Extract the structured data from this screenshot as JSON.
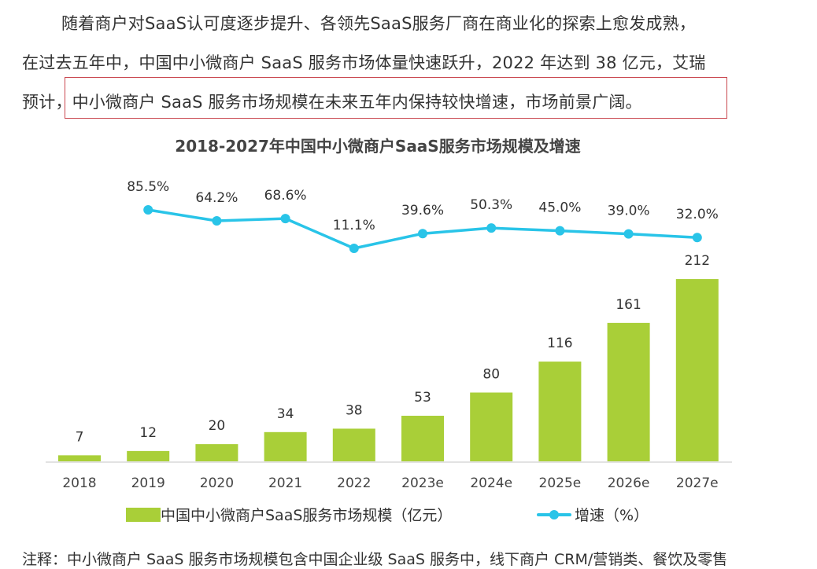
{
  "paragraph": {
    "line1": "随着商户对SaaS认可度逐步提升、各领先SaaS服务厂商在商业化的探索上愈发成熟，",
    "line2": "在过去五年中，中国中小微商户 SaaS 服务市场体量快速跃升，2022 年达到 38 亿元，艾瑞",
    "line3_prefix": "预计，",
    "line3_highlight": "中小微商户 SaaS 服务市场规模在未来五年内保持较快增速，市场前景广阔。"
  },
  "note": "注释：中小微商户 SaaS 服务市场规模包含中国企业级 SaaS 服务中，线下商户 CRM/营销类、餐饮及零售",
  "colors": {
    "bar": "#a9cf38",
    "line": "#29c4e8",
    "highlight_border": "#c9474f"
  },
  "chart_data": {
    "type": "bar+line",
    "title": "2018-2027年中国中小微商户SaaS服务市场规模及增速",
    "categories": [
      "2018",
      "2019",
      "2020",
      "2021",
      "2022",
      "2023e",
      "2024e",
      "2025e",
      "2026e",
      "2027e"
    ],
    "series": [
      {
        "name": "中国中小微商户SaaS服务市场规模（亿元）",
        "type": "bar",
        "values": [
          7,
          12,
          20,
          34,
          38,
          53,
          80,
          116,
          161,
          212
        ],
        "labels": [
          "7",
          "12",
          "20",
          "34",
          "38",
          "53",
          "80",
          "116",
          "161",
          "212"
        ]
      },
      {
        "name": "增速（%）",
        "type": "line",
        "values": [
          null,
          85.5,
          64.2,
          68.6,
          11.1,
          39.6,
          50.3,
          45.0,
          39.0,
          32.0
        ],
        "labels": [
          "",
          "85.5%",
          "64.2%",
          "68.6%",
          "11.1%",
          "39.6%",
          "50.3%",
          "45.0%",
          "39.0%",
          "32.0%"
        ]
      }
    ],
    "legend": "bottom",
    "grid": false
  }
}
